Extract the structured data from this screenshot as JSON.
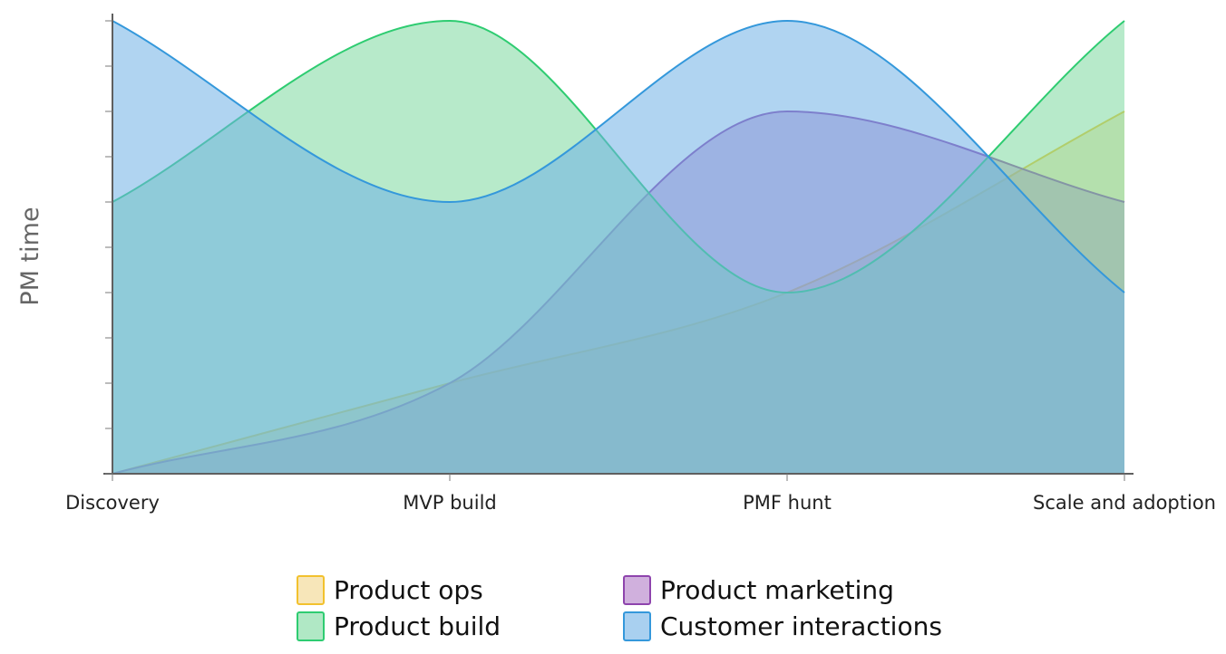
{
  "chart_data": {
    "type": "area",
    "title": "",
    "xlabel": "",
    "ylabel": "PM time",
    "categories": [
      "Discovery",
      "MVP build",
      "PMF hunt",
      "Scale and adoption"
    ],
    "ylim": [
      0,
      10
    ],
    "grid": false,
    "legend_position": "bottom",
    "series": [
      {
        "name": "Product ops",
        "values": [
          0,
          2,
          4,
          8
        ],
        "stroke": "#f2c12e",
        "fill": "#f2d58a"
      },
      {
        "name": "Product marketing",
        "values": [
          0,
          2,
          8,
          6
        ],
        "stroke": "#8e44ad",
        "fill": "#b07cc6"
      },
      {
        "name": "Product build",
        "values": [
          6,
          10,
          4,
          10
        ],
        "stroke": "#2ecc71",
        "fill": "#7bd89f"
      },
      {
        "name": "Customer interactions",
        "values": [
          10,
          6,
          10,
          4
        ],
        "stroke": "#3498db",
        "fill": "#6fb0e6"
      }
    ],
    "legend_order": [
      "Product ops",
      "Product marketing",
      "Product build",
      "Customer interactions"
    ]
  }
}
